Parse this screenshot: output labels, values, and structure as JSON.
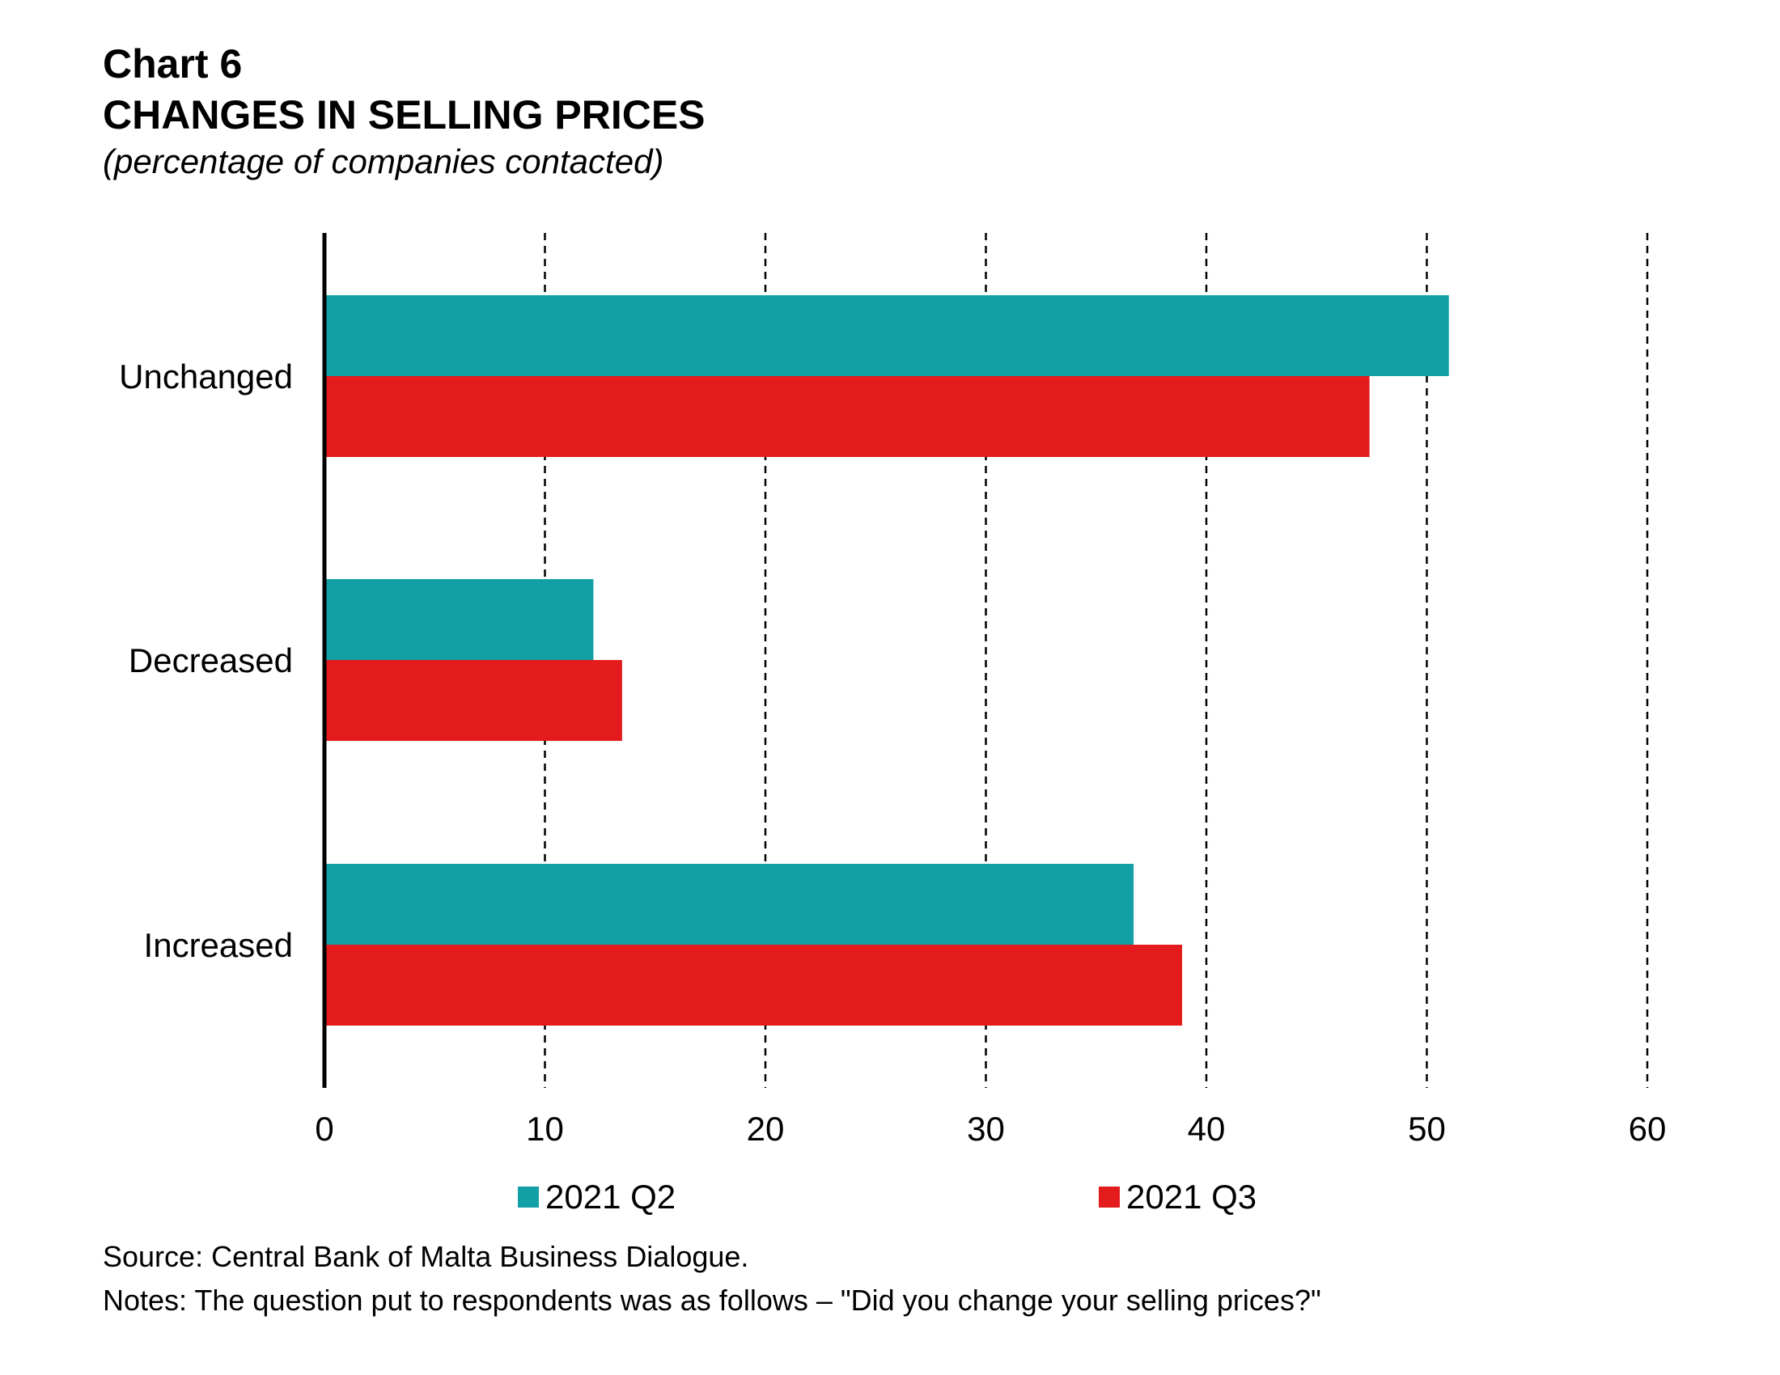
{
  "header": {
    "chart_number": "Chart 6",
    "title": "CHANGES IN SELLING PRICES",
    "subtitle": "(percentage of companies contacted)"
  },
  "colors": {
    "series_q2": "#12A0A6",
    "series_q3": "#E31B1C",
    "axis": "#000000",
    "grid": "#000000"
  },
  "chart_data": {
    "type": "bar",
    "orientation": "horizontal",
    "categories": [
      "Unchanged",
      "Decreased",
      "Increased"
    ],
    "series": [
      {
        "name": "2021 Q2",
        "values": [
          51,
          12.2,
          36.7
        ]
      },
      {
        "name": "2021 Q3",
        "values": [
          47.4,
          13.5,
          38.9
        ]
      }
    ],
    "xlim": [
      0,
      60
    ],
    "xticks": [
      "0",
      "10",
      "20",
      "30",
      "40",
      "50",
      "60"
    ],
    "grid": "vertical dashed",
    "legend_position": "bottom"
  },
  "footer": {
    "source": "Source: Central Bank of Malta Business Dialogue.",
    "notes": "Notes: The question put to respondents was as follows – \"Did you change your selling prices?\""
  }
}
